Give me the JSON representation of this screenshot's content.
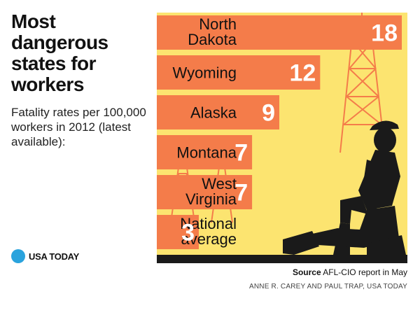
{
  "title": "Most dangerous states for workers",
  "subtitle": "Fatality rates per 100,000 workers in 2012 (latest available):",
  "logo": {
    "text": "USA TODAY",
    "icon": "blue-circle-icon",
    "color": "#2aa3dd"
  },
  "source": {
    "label": "Source",
    "text": "AFL-CIO report in May"
  },
  "credit": "ANNE R. CAREY AND PAUL TRAP, USA TODAY",
  "colors": {
    "background": "#fce470",
    "bar": "#f47c4a",
    "value_text": "#ffffff",
    "silhouette": "#1a1a1a"
  },
  "chart_data": {
    "type": "bar",
    "orientation": "horizontal",
    "categories": [
      [
        "North",
        "Dakota"
      ],
      [
        "Wyoming"
      ],
      [
        "Alaska"
      ],
      [
        "Montana"
      ],
      [
        "West",
        "Virginia"
      ],
      [
        "National",
        "average"
      ]
    ],
    "values": [
      18,
      12,
      9,
      7,
      7,
      3
    ],
    "xlim": [
      0,
      18
    ],
    "grid": false,
    "legend": "none"
  }
}
